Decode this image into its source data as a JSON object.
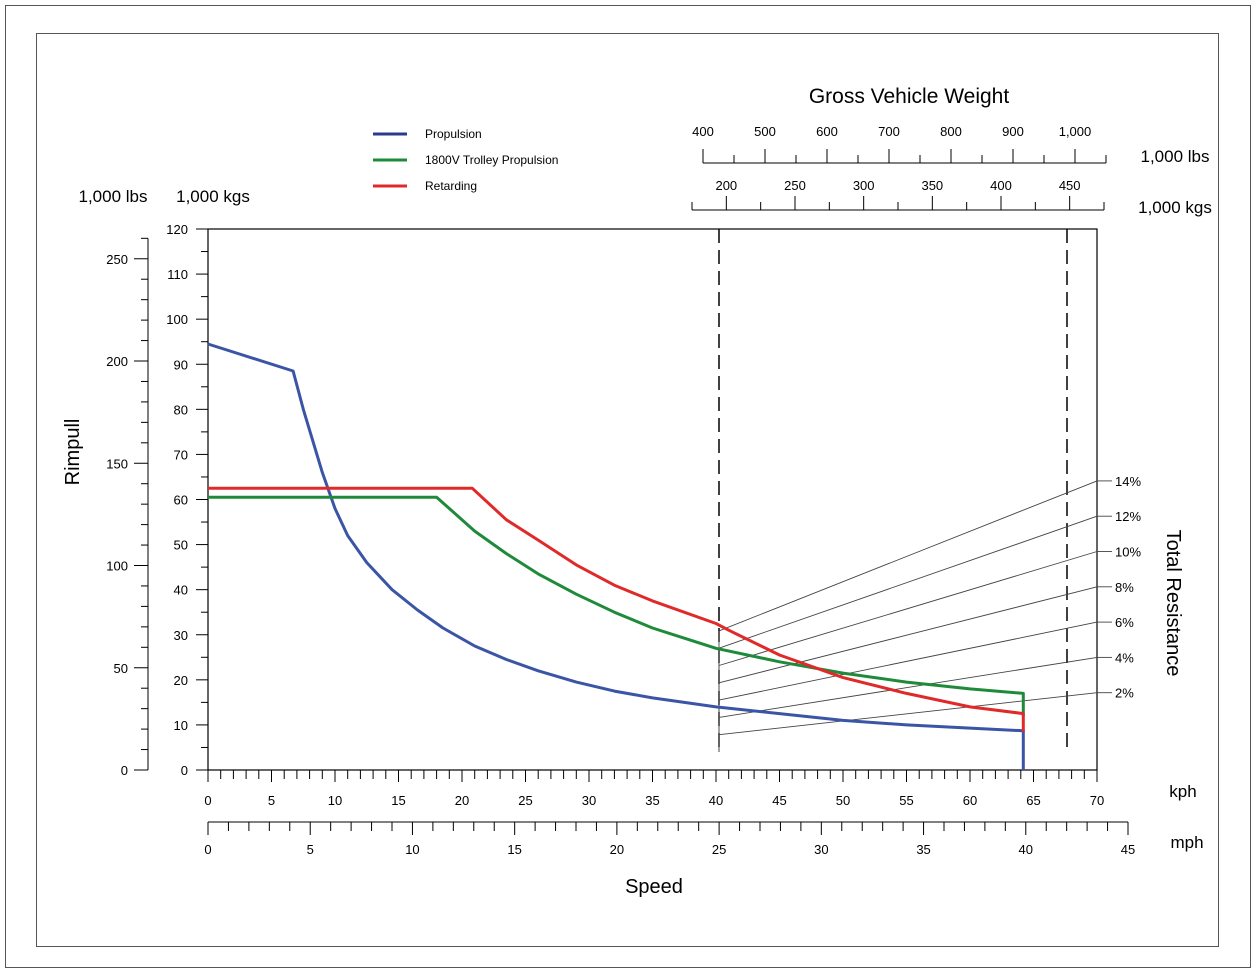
{
  "chart_data": {
    "type": "line",
    "title": "Gross Vehicle Weight",
    "xlabel": "Speed",
    "ylabel": "Rimpull",
    "right_label": "Total Resistance",
    "x_unit_primary": "kph",
    "x_unit_secondary": "mph",
    "y_units": [
      "1,000 lbs",
      "1,000 kgs"
    ],
    "xlim_kph": [
      0,
      70
    ],
    "ylim_kgs": [
      0,
      120
    ],
    "x_ticks_kph": [
      "0",
      "5",
      "10",
      "15",
      "20",
      "25",
      "30",
      "35",
      "40",
      "45",
      "50",
      "55",
      "60",
      "65",
      "70"
    ],
    "x_ticks_mph": [
      "0",
      "5",
      "10",
      "15",
      "20",
      "25",
      "30",
      "35",
      "40",
      "45"
    ],
    "y_ticks_kgs": [
      "0",
      "10",
      "20",
      "30",
      "40",
      "50",
      "60",
      "70",
      "80",
      "90",
      "100",
      "110",
      "120"
    ],
    "y_ticks_lbs": [
      "0",
      "50",
      "100",
      "150",
      "200",
      "250"
    ],
    "gvw_lbs_unit": "1,000 lbs",
    "gvw_kgs_unit": "1,000 kgs",
    "gvw_lbs_ticks": [
      "400",
      "500",
      "600",
      "700",
      "800",
      "900",
      "1,000"
    ],
    "gvw_kgs_ticks": [
      "200",
      "250",
      "300",
      "350",
      "400",
      "450"
    ],
    "grade_labels": [
      "2%",
      "4%",
      "6%",
      "8%",
      "10%",
      "12%",
      "14%"
    ],
    "legend_position": "top-left",
    "series": [
      {
        "name": "Propulsion",
        "color": "#3b55a6",
        "x": [
          0,
          6.7,
          7.5,
          9.0,
          10.0,
          11.0,
          12.5,
          14.5,
          16.5,
          18.5,
          21.0,
          23.5,
          26.0,
          29.0,
          32.0,
          35.0,
          40.0,
          45.0,
          50.0,
          55.0,
          60.0,
          64.2,
          64.2
        ],
        "y": [
          94.5,
          88.5,
          80,
          66,
          58,
          52,
          46,
          40,
          35.5,
          31.5,
          27.5,
          24.5,
          22,
          19.5,
          17.5,
          16,
          14,
          12.5,
          11,
          10,
          9.3,
          8.7,
          0
        ]
      },
      {
        "name": "1800V Trolley Propulsion",
        "color": "#1f8a3a",
        "x": [
          0,
          18.0,
          21.0,
          23.5,
          26.0,
          29.0,
          32.0,
          35.0,
          40.0,
          45.0,
          50.0,
          55.0,
          60.0,
          64.2,
          64.2
        ],
        "y": [
          60.5,
          60.5,
          53,
          48,
          43.5,
          39,
          35,
          31.5,
          27,
          24,
          21.5,
          19.5,
          18,
          17,
          12
        ]
      },
      {
        "name": "Retarding",
        "color": "#e02a2a",
        "x": [
          0,
          20.8,
          23.5,
          26.0,
          29.0,
          32.0,
          35.0,
          40.0,
          41.0,
          45.0,
          50.0,
          55.0,
          60.0,
          64.2,
          64.2
        ],
        "y": [
          62.5,
          62.5,
          55.5,
          51,
          45.5,
          41,
          37.5,
          32.5,
          31,
          25.5,
          20.5,
          17,
          14,
          12.5,
          8.5
        ]
      }
    ]
  }
}
